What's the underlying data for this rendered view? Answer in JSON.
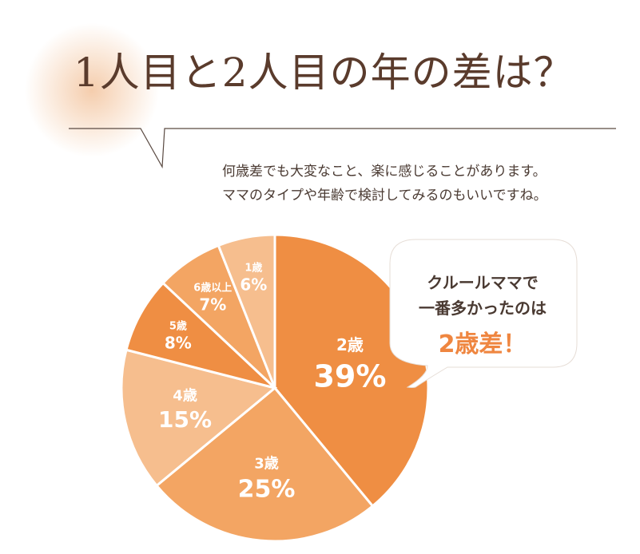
{
  "header": {
    "title": "1人目と2人目の年の差は？",
    "subtitle_lines": [
      "何歳差でも大変なこと、楽に感じることがあります。",
      "ママのタイプや年齢で検討してみるのもいいですね。"
    ]
  },
  "callout": {
    "line1": "クルールママで",
    "line2": "一番多かったのは",
    "highlight": "2歳差！"
  },
  "colors": {
    "accent": "#ef8640",
    "title": "#5a3b2c",
    "text": "#4a3a32"
  },
  "chart_data": {
    "type": "pie",
    "start_angle_deg": 0,
    "direction": "clockwise",
    "slices": [
      {
        "label": "2歳",
        "value": 39,
        "value_text": "39%",
        "color": "#ef8e43"
      },
      {
        "label": "3歳",
        "value": 25,
        "value_text": "25%",
        "color": "#f3a563"
      },
      {
        "label": "4歳",
        "value": 15,
        "value_text": "15%",
        "color": "#f6be8e"
      },
      {
        "label": "5歳",
        "value": 8,
        "value_text": "8%",
        "color": "#ef8e43"
      },
      {
        "label": "6歳以上",
        "value": 7,
        "value_text": "7%",
        "color": "#f3a563"
      },
      {
        "label": "1歳",
        "value": 6,
        "value_text": "6%",
        "color": "#f6be8e"
      }
    ]
  }
}
